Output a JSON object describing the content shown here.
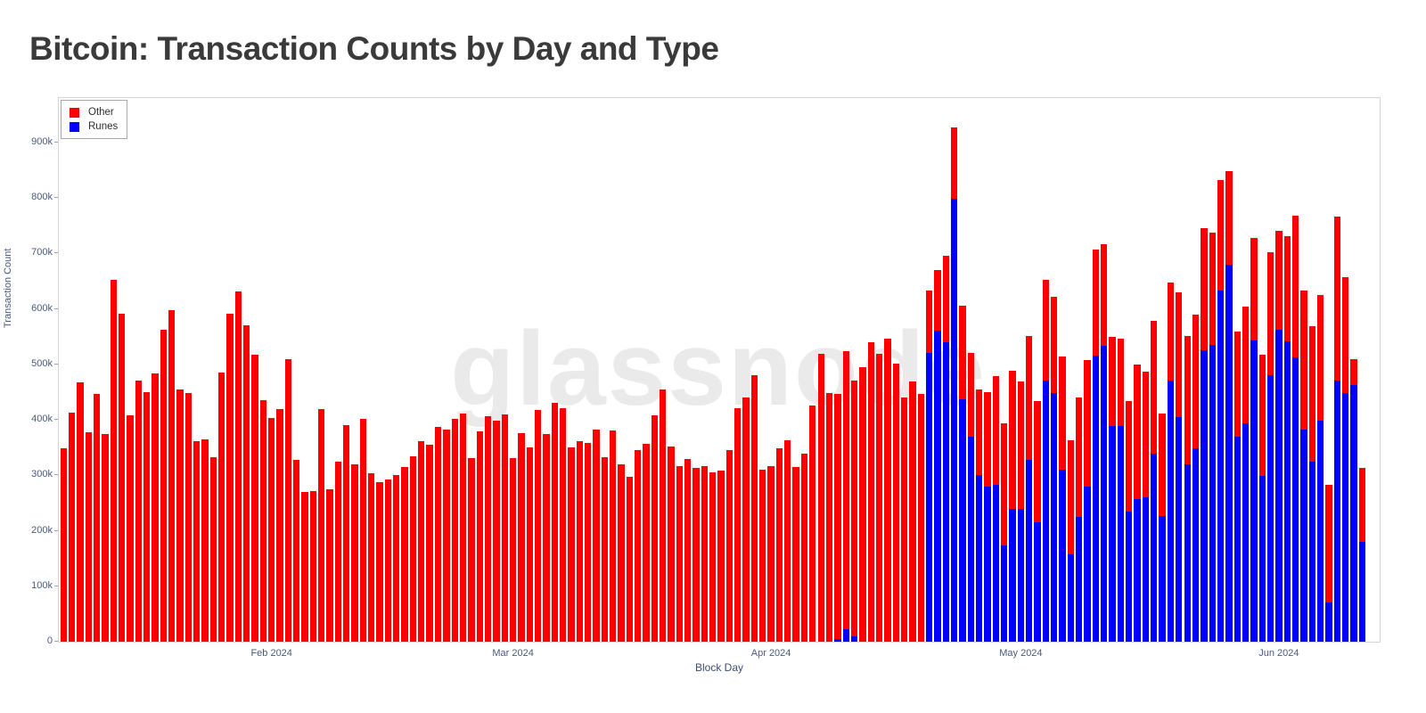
{
  "title": "Bitcoin: Transaction Counts by Day and Type",
  "watermark": "glassnode",
  "colors": {
    "other": "#ff0000",
    "runes": "#0000ff",
    "tick_text": "#4a5a7d",
    "title_text": "#3a3a3a",
    "watermark_text": "#eaeaea"
  },
  "axes": {
    "y_title": "Transaction Count",
    "x_title": "Block Day"
  },
  "legend": {
    "items": [
      {
        "label": "Other",
        "color": "#ff0000"
      },
      {
        "label": "Runes",
        "color": "#0000ff"
      }
    ]
  },
  "chart_data": {
    "type": "bar",
    "stacked": true,
    "title": "Bitcoin: Transaction Counts by Day and Type",
    "xlabel": "Block Day",
    "ylabel": "Transaction Count",
    "x_frequency": "daily",
    "x_start_date_est": "2024-01-07",
    "x_end_date_est": "2024-06-11",
    "units": "thousands",
    "ylim_k": [
      0,
      980
    ],
    "grid": false,
    "legend_position": "top-left-inside",
    "y_ticks": [
      {
        "label": "0",
        "value_k": 0
      },
      {
        "label": "100k",
        "value_k": 100
      },
      {
        "label": "200k",
        "value_k": 200
      },
      {
        "label": "300k",
        "value_k": 300
      },
      {
        "label": "400k",
        "value_k": 400
      },
      {
        "label": "500k",
        "value_k": 500
      },
      {
        "label": "600k",
        "value_k": 600
      },
      {
        "label": "700k",
        "value_k": 700
      },
      {
        "label": "800k",
        "value_k": 800
      },
      {
        "label": "900k",
        "value_k": 900
      }
    ],
    "x_ticks": [
      {
        "label": "Feb 2024",
        "day_index": 26
      },
      {
        "label": "Mar 2024",
        "day_index": 55
      },
      {
        "label": "Apr 2024",
        "day_index": 86
      },
      {
        "label": "May 2024",
        "day_index": 116
      },
      {
        "label": "Jun 2024",
        "day_index": 147
      }
    ],
    "series": [
      {
        "name": "Other",
        "color": "#ff0000",
        "values": [
          348,
          413,
          468,
          378,
          447,
          374,
          652,
          592,
          408,
          470,
          450,
          483,
          563,
          598,
          455,
          449,
          361,
          365,
          332,
          485,
          591,
          631,
          570,
          517,
          436,
          404,
          420,
          509,
          328,
          270,
          271,
          419,
          274,
          325,
          390,
          320,
          402,
          303,
          288,
          292,
          301,
          315,
          334,
          362,
          355,
          387,
          383,
          402,
          412,
          331,
          379,
          406,
          399,
          410,
          331,
          376,
          351,
          417,
          375,
          430,
          421,
          350,
          361,
          358,
          383,
          333,
          381,
          320,
          297,
          345,
          357,
          408,
          455,
          352,
          317,
          329,
          313,
          316,
          305,
          308,
          346,
          421,
          440,
          481,
          310,
          317,
          349,
          363,
          315,
          339,
          425,
          519,
          448,
          442,
          502,
          460,
          495,
          540,
          519,
          546,
          501,
          441,
          469,
          447,
          113,
          110,
          156,
          129,
          168,
          151,
          155,
          170,
          196,
          219,
          248,
          229,
          223,
          217,
          182,
          172,
          204,
          205,
          216,
          228,
          192,
          183,
          161,
          158,
          199,
          243,
          225,
          239,
          186,
          177,
          225,
          232,
          240,
          220,
          202,
          200,
          170,
          190,
          211,
          184,
          219,
          222,
          178,
          190,
          256,
          251,
          243,
          227,
          213,
          297,
          208,
          48,
          133
        ]
      },
      {
        "name": "Runes",
        "color": "#0000ff",
        "values": [
          0,
          0,
          0,
          0,
          0,
          0,
          0,
          0,
          0,
          0,
          0,
          0,
          0,
          0,
          0,
          0,
          0,
          0,
          0,
          0,
          0,
          0,
          0,
          0,
          0,
          0,
          0,
          0,
          0,
          0,
          0,
          0,
          0,
          0,
          0,
          0,
          0,
          0,
          0,
          0,
          0,
          0,
          0,
          0,
          0,
          0,
          0,
          0,
          0,
          0,
          0,
          0,
          0,
          0,
          0,
          0,
          0,
          0,
          0,
          0,
          0,
          0,
          0,
          0,
          0,
          0,
          0,
          0,
          0,
          0,
          0,
          0,
          0,
          0,
          0,
          0,
          0,
          0,
          0,
          0,
          0,
          0,
          0,
          0,
          0,
          0,
          0,
          0,
          0,
          0,
          0,
          0,
          0,
          5,
          22,
          10,
          0,
          0,
          0,
          0,
          0,
          0,
          0,
          0,
          520,
          560,
          540,
          798,
          437,
          370,
          300,
          280,
          283,
          174,
          240,
          240,
          328,
          216,
          471,
          449,
          310,
          158,
          225,
          280,
          515,
          533,
          388,
          389,
          234,
          257,
          261,
          339,
          226,
          471,
          405,
          319,
          349,
          525,
          535,
          633,
          679,
          369,
          393,
          543,
          299,
          480,
          562,
          541,
          512,
          382,
          325,
          398,
          70,
          470,
          449,
          462,
          180
        ]
      }
    ]
  }
}
